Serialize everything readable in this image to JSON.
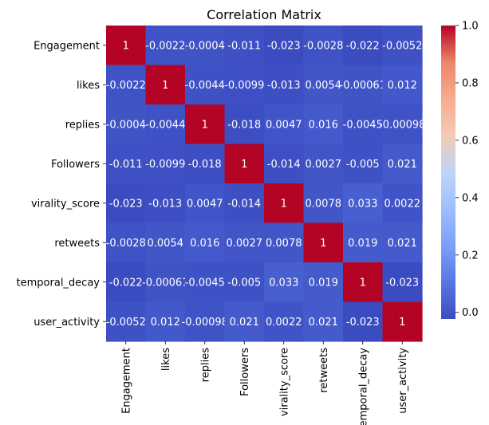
{
  "chart_data": {
    "type": "heatmap",
    "title": "Correlation Matrix",
    "xlabel": "",
    "ylabel": "",
    "row_labels": [
      "Engagement",
      "likes",
      "replies",
      "Followers",
      "virality_score",
      "retweets",
      "temporal_decay",
      "user_activity"
    ],
    "col_labels": [
      "Engagement",
      "likes",
      "replies",
      "Followers",
      "virality_score",
      "retweets",
      "temporal_decay",
      "user_activity"
    ],
    "values": [
      [
        1,
        -0.0022,
        -0.0004,
        -0.011,
        -0.023,
        -0.0028,
        -0.022,
        -0.0052
      ],
      [
        -0.0022,
        1,
        -0.0044,
        -0.0099,
        -0.013,
        0.0054,
        -0.00061,
        0.012
      ],
      [
        -0.0004,
        -0.0044,
        1,
        -0.018,
        0.0047,
        0.016,
        -0.0045,
        -0.00098
      ],
      [
        -0.011,
        -0.0099,
        -0.018,
        1,
        -0.014,
        0.0027,
        -0.005,
        0.021
      ],
      [
        -0.023,
        -0.013,
        0.0047,
        -0.014,
        1,
        0.0078,
        0.033,
        0.0022
      ],
      [
        -0.0028,
        0.0054,
        0.016,
        0.0027,
        0.0078,
        1,
        0.019,
        0.021
      ],
      [
        -0.022,
        -0.00061,
        -0.0045,
        -0.005,
        0.033,
        0.019,
        1,
        -0.023
      ],
      [
        -0.0052,
        0.012,
        -0.00098,
        0.021,
        0.0022,
        0.021,
        -0.023,
        1
      ]
    ],
    "annotations": [
      [
        "1",
        "-0.0022",
        "-0.0004",
        "-0.011",
        "-0.023",
        "-0.0028",
        "-0.022",
        "-0.0052"
      ],
      [
        "-0.0022",
        "1",
        "-0.0044",
        "-0.0099",
        "-0.013",
        "0.0054",
        "-0.00061",
        "0.012"
      ],
      [
        "-0.0004",
        "-0.0044",
        "1",
        "-0.018",
        "0.0047",
        "0.016",
        "-0.0045",
        "-0.00098"
      ],
      [
        "-0.011",
        "-0.0099",
        "-0.018",
        "1",
        "-0.014",
        "0.0027",
        "-0.005",
        "0.021"
      ],
      [
        "-0.023",
        "-0.013",
        "0.0047",
        "-0.014",
        "1",
        "0.0078",
        "0.033",
        "0.0022"
      ],
      [
        "-0.0028",
        "0.0054",
        "0.016",
        "0.0027",
        "0.0078",
        "1",
        "0.019",
        "0.021"
      ],
      [
        "-0.022",
        "-0.00061",
        "-0.0045",
        "-0.005",
        "0.033",
        "0.019",
        "1",
        "-0.023"
      ],
      [
        "-0.0052",
        "0.012",
        "-0.00098",
        "0.021",
        "0.0022",
        "0.021",
        "-0.023",
        "1"
      ]
    ],
    "colormap": "coolwarm",
    "colorbar": {
      "vmin": -0.023,
      "vmax": 1.0,
      "ticks": [
        0.0,
        0.2,
        0.4,
        0.6,
        0.8,
        1.0
      ],
      "tick_labels": [
        "0.0",
        "0.2",
        "0.4",
        "0.6",
        "0.8",
        "1.0"
      ]
    }
  }
}
